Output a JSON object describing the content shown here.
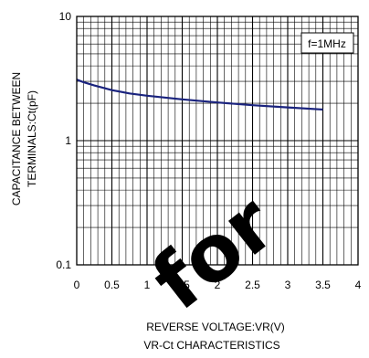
{
  "chart_data": {
    "type": "line",
    "title": "VR-Ct CHARACTERISTICS",
    "xlabel": "REVERSE VOLTAGE:VR(V)",
    "ylabel_lines": [
      "CAPACITANCE BETWEEN",
      "TERMINALS:Ct(pF)"
    ],
    "xlim": [
      0,
      4
    ],
    "ylim": [
      0.1,
      10
    ],
    "yscale": "log",
    "grid": true,
    "x_ticks": [
      "0",
      "0.5",
      "1",
      "1.5",
      "2",
      "2.5",
      "3",
      "3.5",
      "4"
    ],
    "y_ticks": [
      "0.1",
      "1",
      "10"
    ],
    "legend": {
      "text": "f=1MHz",
      "position": "top-right"
    },
    "series": [
      {
        "color": "#1a237e",
        "x": [
          0,
          0.1,
          0.25,
          0.5,
          0.75,
          1.0,
          1.5,
          2.0,
          2.5,
          3.0,
          3.5
        ],
        "y": [
          3.1,
          2.95,
          2.78,
          2.55,
          2.4,
          2.3,
          2.15,
          2.03,
          1.93,
          1.85,
          1.78
        ]
      }
    ]
  },
  "watermark": "for"
}
